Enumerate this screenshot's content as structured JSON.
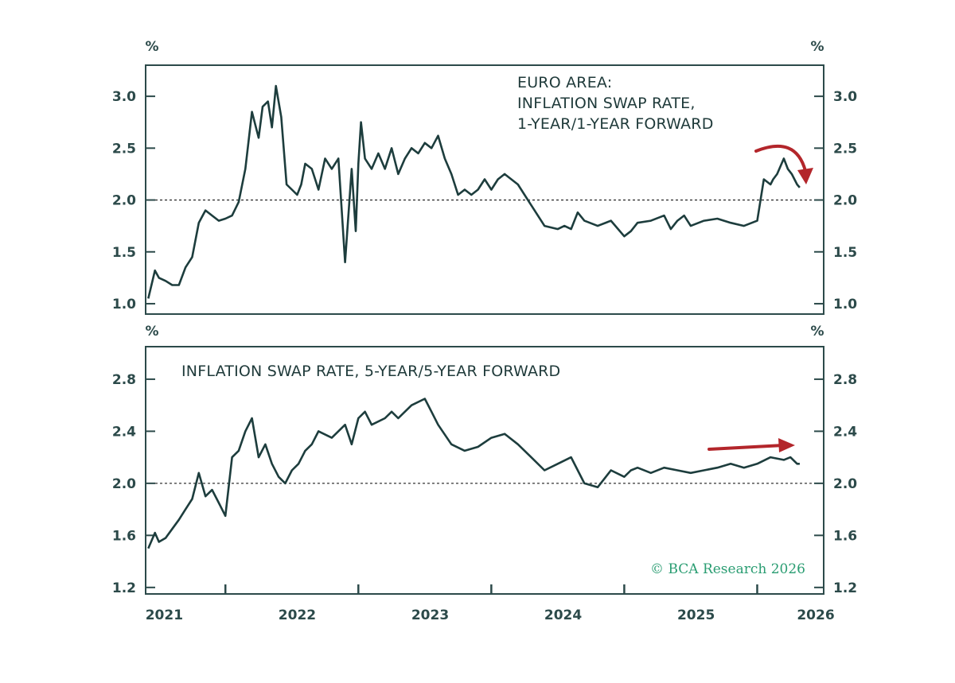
{
  "colors": {
    "line": "#1d3d3d",
    "axis": "#2c4a4a",
    "arrow": "#b3262b",
    "credit": "#2a9d72"
  },
  "credit": "© BCA Research 2026",
  "x_axis": {
    "ticks": [
      "2021",
      "2022",
      "2023",
      "2024",
      "2025",
      "2026"
    ]
  },
  "chart_data": [
    {
      "type": "line",
      "title_lines": [
        "EURO AREA:",
        "INFLATION SWAP RATE,",
        "1-YEAR/1-YEAR FORWARD"
      ],
      "left_unit": "%",
      "right_unit": "%",
      "ylim": [
        0.9,
        3.3
      ],
      "yticks": [
        "1.0",
        "1.5",
        "2.0",
        "2.5",
        "3.0"
      ],
      "reference_line": 2.0,
      "xlim": [
        2020.9,
        2026.0
      ],
      "annotation": "curved arrow pointing down",
      "series": [
        {
          "x": [
            2020.92,
            2020.97,
            2021.0,
            2021.05,
            2021.1,
            2021.15,
            2021.2,
            2021.25,
            2021.3,
            2021.35,
            2021.4,
            2021.45,
            2021.5,
            2021.55,
            2021.6,
            2021.65,
            2021.7,
            2021.75,
            2021.78,
            2021.82,
            2021.85,
            2021.88,
            2021.92,
            2021.96,
            2022.0,
            2022.04,
            2022.07,
            2022.1,
            2022.15,
            2022.2,
            2022.25,
            2022.3,
            2022.35,
            2022.4,
            2022.45,
            2022.48,
            2022.5,
            2022.52,
            2022.55,
            2022.6,
            2022.65,
            2022.7,
            2022.75,
            2022.8,
            2022.85,
            2022.9,
            2022.95,
            2023.0,
            2023.05,
            2023.1,
            2023.15,
            2023.2,
            2023.25,
            2023.3,
            2023.35,
            2023.4,
            2023.45,
            2023.5,
            2023.55,
            2023.6,
            2023.7,
            2023.8,
            2023.9,
            2024.0,
            2024.05,
            2024.1,
            2024.15,
            2024.2,
            2024.3,
            2024.4,
            2024.5,
            2024.55,
            2024.6,
            2024.7,
            2024.8,
            2024.85,
            2024.9,
            2024.95,
            2025.0,
            2025.1,
            2025.2,
            2025.3,
            2025.4,
            2025.5,
            2025.55,
            2025.6,
            2025.62,
            2025.65,
            2025.7,
            2025.73,
            2025.76,
            2025.8,
            2025.82
          ],
          "y": [
            1.05,
            1.32,
            1.25,
            1.22,
            1.18,
            1.18,
            1.35,
            1.45,
            1.78,
            1.9,
            1.85,
            1.8,
            1.82,
            1.85,
            1.98,
            2.3,
            2.85,
            2.6,
            2.9,
            2.95,
            2.7,
            3.1,
            2.8,
            2.15,
            2.1,
            2.05,
            2.15,
            2.35,
            2.3,
            2.1,
            2.4,
            2.3,
            2.4,
            1.4,
            2.3,
            1.7,
            2.35,
            2.75,
            2.4,
            2.3,
            2.45,
            2.3,
            2.5,
            2.25,
            2.4,
            2.5,
            2.45,
            2.55,
            2.5,
            2.62,
            2.4,
            2.25,
            2.05,
            2.1,
            2.05,
            2.1,
            2.2,
            2.1,
            2.2,
            2.25,
            2.15,
            1.95,
            1.75,
            1.72,
            1.75,
            1.72,
            1.88,
            1.8,
            1.75,
            1.8,
            1.65,
            1.7,
            1.78,
            1.8,
            1.85,
            1.72,
            1.8,
            1.85,
            1.75,
            1.8,
            1.82,
            1.78,
            1.75,
            1.8,
            2.2,
            2.15,
            2.2,
            2.25,
            2.4,
            2.3,
            2.25,
            2.15,
            2.12
          ]
        }
      ]
    },
    {
      "type": "line",
      "title_lines": [
        "INFLATION SWAP RATE, 5-YEAR/5-YEAR FORWARD"
      ],
      "left_unit": "%",
      "right_unit": "%",
      "ylim": [
        1.15,
        3.05
      ],
      "yticks": [
        "1.2",
        "1.6",
        "2.0",
        "2.4",
        "2.8"
      ],
      "reference_line": 2.0,
      "xlim": [
        2020.9,
        2026.0
      ],
      "annotation": "straight arrow pointing right",
      "series": [
        {
          "x": [
            2020.92,
            2020.97,
            2021.0,
            2021.05,
            2021.1,
            2021.15,
            2021.2,
            2021.25,
            2021.3,
            2021.35,
            2021.4,
            2021.45,
            2021.5,
            2021.55,
            2021.6,
            2021.65,
            2021.7,
            2021.75,
            2021.8,
            2021.85,
            2021.9,
            2021.95,
            2022.0,
            2022.05,
            2022.1,
            2022.15,
            2022.2,
            2022.3,
            2022.4,
            2022.45,
            2022.5,
            2022.55,
            2022.6,
            2022.7,
            2022.75,
            2022.8,
            2022.9,
            2023.0,
            2023.05,
            2023.1,
            2023.2,
            2023.3,
            2023.4,
            2023.5,
            2023.6,
            2023.7,
            2023.8,
            2023.9,
            2024.0,
            2024.1,
            2024.2,
            2024.3,
            2024.4,
            2024.5,
            2024.55,
            2024.6,
            2024.7,
            2024.8,
            2024.9,
            2025.0,
            2025.1,
            2025.2,
            2025.3,
            2025.4,
            2025.5,
            2025.6,
            2025.7,
            2025.75,
            2025.8,
            2025.82
          ],
          "y": [
            1.5,
            1.62,
            1.55,
            1.58,
            1.65,
            1.72,
            1.8,
            1.88,
            2.08,
            1.9,
            1.95,
            1.85,
            1.75,
            2.2,
            2.25,
            2.4,
            2.5,
            2.2,
            2.3,
            2.15,
            2.05,
            2.0,
            2.1,
            2.15,
            2.25,
            2.3,
            2.4,
            2.35,
            2.45,
            2.3,
            2.5,
            2.55,
            2.45,
            2.5,
            2.55,
            2.5,
            2.6,
            2.65,
            2.55,
            2.45,
            2.3,
            2.25,
            2.28,
            2.35,
            2.38,
            2.3,
            2.2,
            2.1,
            2.15,
            2.2,
            2.0,
            1.97,
            2.1,
            2.05,
            2.1,
            2.12,
            2.08,
            2.12,
            2.1,
            2.08,
            2.1,
            2.12,
            2.15,
            2.12,
            2.15,
            2.2,
            2.18,
            2.2,
            2.15,
            2.15
          ]
        }
      ]
    }
  ]
}
